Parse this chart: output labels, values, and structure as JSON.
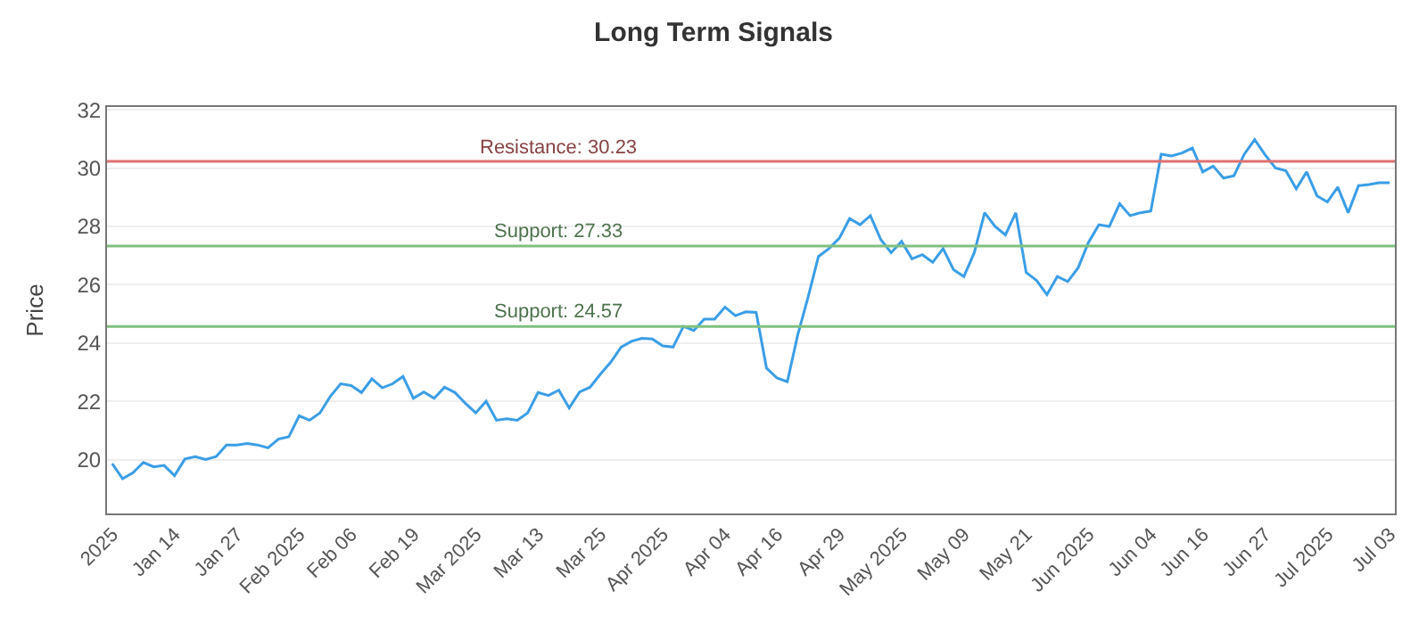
{
  "chart_data": {
    "type": "line",
    "title": "Long Term Signals",
    "ylabel": "Price",
    "categories": [
      "2025",
      null,
      null,
      null,
      null,
      null,
      "Jan 14",
      null,
      null,
      null,
      null,
      null,
      "Jan 27",
      null,
      null,
      null,
      null,
      null,
      "Feb 2025",
      null,
      null,
      null,
      null,
      "Feb 06",
      null,
      null,
      null,
      null,
      null,
      "Feb 19",
      null,
      null,
      null,
      null,
      null,
      "Mar 2025",
      null,
      null,
      null,
      null,
      null,
      "Mar 13",
      null,
      null,
      null,
      null,
      null,
      "Mar 25",
      null,
      null,
      null,
      null,
      null,
      "Apr 2025",
      null,
      null,
      null,
      null,
      null,
      "Apr 04",
      null,
      null,
      null,
      null,
      "Apr 16",
      null,
      null,
      null,
      null,
      null,
      "Apr 29",
      null,
      null,
      null,
      null,
      null,
      "May 2025",
      null,
      null,
      null,
      null,
      null,
      "May 09",
      null,
      null,
      null,
      null,
      null,
      "May 21",
      null,
      null,
      null,
      null,
      null,
      "Jun 2025",
      null,
      null,
      null,
      null,
      null,
      "Jun 04",
      null,
      null,
      null,
      null,
      "Jun 16",
      null,
      null,
      null,
      null,
      null,
      "Jun 27",
      null,
      null,
      null,
      null,
      null,
      "Jul 2025",
      null,
      null,
      null,
      null,
      null,
      "Jul 03"
    ],
    "series": [
      {
        "color": "#3a9ee6",
        "values": [
          19.86,
          19.34,
          19.55,
          19.9,
          19.75,
          19.8,
          19.45,
          20.02,
          20.1,
          20.0,
          20.1,
          20.5,
          20.5,
          20.55,
          20.5,
          20.4,
          20.7,
          20.78,
          21.5,
          21.35,
          21.6,
          22.17,
          22.6,
          22.54,
          22.3,
          22.77,
          22.46,
          22.6,
          22.85,
          22.1,
          22.32,
          22.1,
          22.48,
          22.3,
          21.93,
          21.6,
          22.0,
          21.35,
          21.4,
          21.35,
          21.6,
          22.3,
          22.2,
          22.38,
          21.77,
          22.32,
          22.48,
          22.93,
          23.34,
          23.86,
          24.06,
          24.16,
          24.14,
          23.9,
          23.86,
          24.57,
          24.43,
          24.82,
          24.82,
          25.23,
          24.94,
          25.07,
          25.05,
          23.14,
          22.8,
          22.67,
          24.27,
          25.57,
          26.97,
          27.24,
          27.59,
          28.27,
          28.06,
          28.37,
          27.55,
          27.1,
          27.49,
          26.89,
          27.03,
          26.77,
          27.24,
          26.52,
          26.28,
          27.1,
          28.47,
          28.0,
          27.71,
          28.47,
          26.42,
          26.15,
          25.66,
          26.28,
          26.11,
          26.58,
          27.45,
          28.06,
          28.0,
          28.78,
          28.37,
          28.47,
          28.53,
          30.48,
          30.42,
          30.52,
          30.69,
          29.87,
          30.07,
          29.66,
          29.74,
          30.48,
          30.98,
          30.46,
          30.01,
          29.91,
          29.29,
          29.87,
          29.05,
          28.84,
          29.35,
          28.47,
          29.4,
          29.44,
          29.5,
          29.5
        ]
      }
    ],
    "ylim": [
      18.15,
      32.1
    ],
    "yticks": [
      20,
      22,
      24,
      26,
      28,
      30,
      32
    ],
    "grid": "y",
    "marker": "none",
    "line_style": "solid",
    "ref_lines": [
      {
        "axis": "y",
        "value": 30.23,
        "label": "Resistance: 30.23",
        "color": "#e07070"
      },
      {
        "axis": "y",
        "value": 27.33,
        "label": "Support: 27.33",
        "color": "#80c080"
      },
      {
        "axis": "y",
        "value": 24.57,
        "label": "Support: 24.57",
        "color": "#80c080"
      }
    ]
  }
}
